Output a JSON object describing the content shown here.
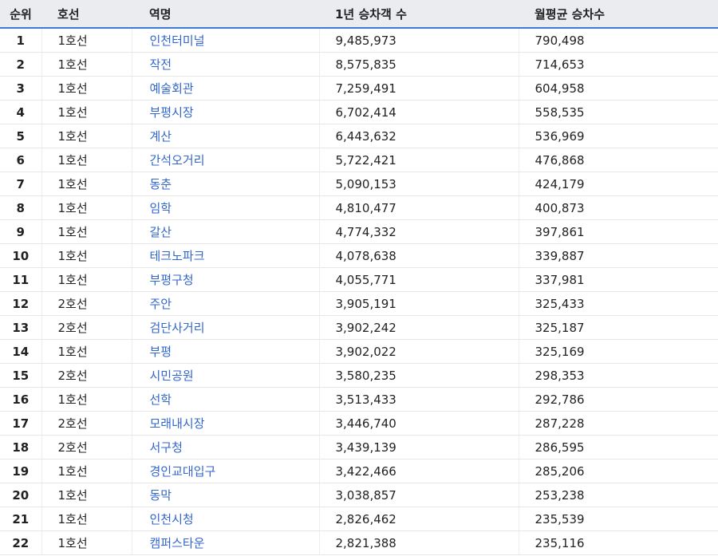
{
  "headers": {
    "rank": "순위",
    "line": "호선",
    "station": "역명",
    "year": "1년 승차객 수",
    "month": "월평균 승차수"
  },
  "colors": {
    "link": "#3366cc",
    "header_bg": "#eaecf0",
    "header_border": "#3b7bd6"
  },
  "rows": [
    {
      "rank": "1",
      "line": "1호선",
      "station": "인천터미널",
      "year": "9,485,973",
      "month": "790,498"
    },
    {
      "rank": "2",
      "line": "1호선",
      "station": "작전",
      "year": "8,575,835",
      "month": "714,653"
    },
    {
      "rank": "3",
      "line": "1호선",
      "station": "예술회관",
      "year": "7,259,491",
      "month": "604,958"
    },
    {
      "rank": "4",
      "line": "1호선",
      "station": "부평시장",
      "year": "6,702,414",
      "month": "558,535"
    },
    {
      "rank": "5",
      "line": "1호선",
      "station": "계산",
      "year": "6,443,632",
      "month": "536,969"
    },
    {
      "rank": "6",
      "line": "1호선",
      "station": "간석오거리",
      "year": "5,722,421",
      "month": "476,868"
    },
    {
      "rank": "7",
      "line": "1호선",
      "station": "동춘",
      "year": "5,090,153",
      "month": "424,179"
    },
    {
      "rank": "8",
      "line": "1호선",
      "station": "임학",
      "year": "4,810,477",
      "month": "400,873"
    },
    {
      "rank": "9",
      "line": "1호선",
      "station": "갈산",
      "year": "4,774,332",
      "month": "397,861"
    },
    {
      "rank": "10",
      "line": "1호선",
      "station": "테크노파크",
      "year": "4,078,638",
      "month": "339,887"
    },
    {
      "rank": "11",
      "line": "1호선",
      "station": "부평구청",
      "year": "4,055,771",
      "month": "337,981"
    },
    {
      "rank": "12",
      "line": "2호선",
      "station": "주안",
      "year": "3,905,191",
      "month": "325,433"
    },
    {
      "rank": "13",
      "line": "2호선",
      "station": "검단사거리",
      "year": "3,902,242",
      "month": "325,187"
    },
    {
      "rank": "14",
      "line": "1호선",
      "station": "부평",
      "year": "3,902,022",
      "month": "325,169"
    },
    {
      "rank": "15",
      "line": "2호선",
      "station": "시민공원",
      "year": "3,580,235",
      "month": "298,353"
    },
    {
      "rank": "16",
      "line": "1호선",
      "station": "선학",
      "year": "3,513,433",
      "month": "292,786"
    },
    {
      "rank": "17",
      "line": "2호선",
      "station": "모래내시장",
      "year": "3,446,740",
      "month": "287,228"
    },
    {
      "rank": "18",
      "line": "2호선",
      "station": "서구청",
      "year": "3,439,139",
      "month": "286,595"
    },
    {
      "rank": "19",
      "line": "1호선",
      "station": "경인교대입구",
      "year": "3,422,466",
      "month": "285,206"
    },
    {
      "rank": "20",
      "line": "1호선",
      "station": "동막",
      "year": "3,038,857",
      "month": "253,238"
    },
    {
      "rank": "21",
      "line": "1호선",
      "station": "인천시청",
      "year": "2,826,462",
      "month": "235,539"
    },
    {
      "rank": "22",
      "line": "1호선",
      "station": "캠퍼스타운",
      "year": "2,821,388",
      "month": "235,116"
    }
  ]
}
